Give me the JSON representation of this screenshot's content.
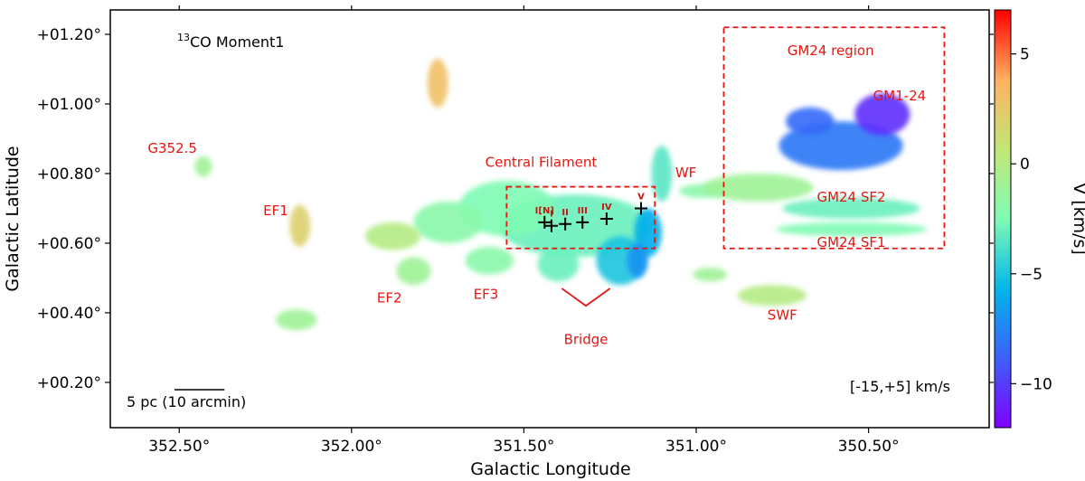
{
  "chart_data": {
    "type": "heatmap",
    "title": "13CO Moment1",
    "title_parts": {
      "sup": "13",
      "main": "CO Moment1"
    },
    "xlabel": "Galactic Longitude",
    "ylabel": "Galactic Latitude",
    "xlim": [
      352.7,
      350.15
    ],
    "ylim": [
      0.07,
      1.27
    ],
    "x_ticks": [
      {
        "value": 352.5,
        "label": "352.50°"
      },
      {
        "value": 352.0,
        "label": "352.00°"
      },
      {
        "value": 351.5,
        "label": "351.50°"
      },
      {
        "value": 351.0,
        "label": "351.00°"
      },
      {
        "value": 350.5,
        "label": "350.50°"
      }
    ],
    "y_ticks": [
      {
        "value": 1.2,
        "label": "+01.20°"
      },
      {
        "value": 1.0,
        "label": "+01.00°"
      },
      {
        "value": 0.8,
        "label": "+00.80°"
      },
      {
        "value": 0.6,
        "label": "+00.60°"
      },
      {
        "value": 0.4,
        "label": "+00.40°"
      },
      {
        "value": 0.2,
        "label": "+00.20°"
      }
    ],
    "colorbar": {
      "label": "V [km/s]",
      "vmin": -12,
      "vmax": 7,
      "ticks": [
        {
          "value": 5,
          "label": "5"
        },
        {
          "value": 0,
          "label": "0"
        },
        {
          "value": -5,
          "label": "−5"
        },
        {
          "value": -10,
          "label": "−10"
        }
      ],
      "colormap": "rainbow"
    },
    "velocity_range_label": "[-15,+5] km/s",
    "scale_bar_label": "5 pc (10 arcmin)",
    "scale_bar_length_deg": 0.145,
    "regions": [
      {
        "name": "Central Filament box",
        "l": [
          351.55,
          351.12
        ],
        "b": [
          0.585,
          0.762
        ]
      },
      {
        "name": "GM24 region box",
        "l": [
          350.92,
          350.28
        ],
        "b": [
          0.585,
          1.22
        ]
      }
    ],
    "labels": [
      {
        "text": "G352.5",
        "l": 352.52,
        "b": 0.86
      },
      {
        "text": "EF1",
        "l": 352.22,
        "b": 0.68
      },
      {
        "text": "EF2",
        "l": 351.89,
        "b": 0.43
      },
      {
        "text": "EF3",
        "l": 351.61,
        "b": 0.44
      },
      {
        "text": "Central Filament",
        "l": 351.45,
        "b": 0.82
      },
      {
        "text": "WF",
        "l": 351.03,
        "b": 0.79
      },
      {
        "text": "Bridge",
        "l": 351.32,
        "b": 0.31
      },
      {
        "text": "SWF",
        "l": 350.75,
        "b": 0.38
      },
      {
        "text": "GM24 region",
        "l": 350.61,
        "b": 1.14
      },
      {
        "text": "GM1-24",
        "l": 350.41,
        "b": 1.01
      },
      {
        "text": "GM24 SF2",
        "l": 350.55,
        "b": 0.72
      },
      {
        "text": "GM24 SF1",
        "l": 350.55,
        "b": 0.59
      }
    ],
    "clumps": [
      {
        "label": "I[N]",
        "l": 351.44,
        "b": 0.66
      },
      {
        "label": "I",
        "l": 351.42,
        "b": 0.65
      },
      {
        "label": "II",
        "l": 351.38,
        "b": 0.655
      },
      {
        "label": "III",
        "l": 351.33,
        "b": 0.66
      },
      {
        "label": "IV",
        "l": 351.26,
        "b": 0.67
      },
      {
        "label": "V",
        "l": 351.16,
        "b": 0.7
      }
    ],
    "clouds": [
      {
        "l": 351.35,
        "b": 0.65,
        "rl": 0.22,
        "rb": 0.09,
        "v": -3
      },
      {
        "l": 351.55,
        "b": 0.7,
        "rl": 0.14,
        "rb": 0.08,
        "v": -2.5
      },
      {
        "l": 351.72,
        "b": 0.66,
        "rl": 0.1,
        "rb": 0.06,
        "v": -2
      },
      {
        "l": 351.88,
        "b": 0.62,
        "rl": 0.08,
        "rb": 0.04,
        "v": 0
      },
      {
        "l": 351.82,
        "b": 0.52,
        "rl": 0.05,
        "rb": 0.04,
        "v": -1
      },
      {
        "l": 351.6,
        "b": 0.55,
        "rl": 0.07,
        "rb": 0.04,
        "v": -2
      },
      {
        "l": 351.4,
        "b": 0.54,
        "rl": 0.06,
        "rb": 0.05,
        "v": -3
      },
      {
        "l": 351.22,
        "b": 0.55,
        "rl": 0.07,
        "rb": 0.07,
        "v": -5
      },
      {
        "l": 351.14,
        "b": 0.63,
        "rl": 0.04,
        "rb": 0.07,
        "v": -6
      },
      {
        "l": 351.1,
        "b": 0.8,
        "rl": 0.03,
        "rb": 0.08,
        "v": -3.5
      },
      {
        "l": 350.98,
        "b": 0.75,
        "rl": 0.07,
        "rb": 0.02,
        "v": -2
      },
      {
        "l": 350.82,
        "b": 0.76,
        "rl": 0.16,
        "rb": 0.04,
        "v": -1
      },
      {
        "l": 350.58,
        "b": 0.88,
        "rl": 0.18,
        "rb": 0.07,
        "v": -8
      },
      {
        "l": 350.46,
        "b": 0.97,
        "rl": 0.08,
        "rb": 0.06,
        "v": -10.5
      },
      {
        "l": 350.67,
        "b": 0.95,
        "rl": 0.07,
        "rb": 0.04,
        "v": -8.5
      },
      {
        "l": 350.55,
        "b": 0.7,
        "rl": 0.2,
        "rb": 0.03,
        "v": -3
      },
      {
        "l": 350.55,
        "b": 0.64,
        "rl": 0.22,
        "rb": 0.02,
        "v": -2.5
      },
      {
        "l": 350.78,
        "b": 0.45,
        "rl": 0.1,
        "rb": 0.03,
        "v": 0
      },
      {
        "l": 350.96,
        "b": 0.51,
        "rl": 0.05,
        "rb": 0.02,
        "v": -1
      },
      {
        "l": 352.15,
        "b": 0.65,
        "rl": 0.03,
        "rb": 0.06,
        "v": 2
      },
      {
        "l": 352.43,
        "b": 0.82,
        "rl": 0.025,
        "rb": 0.03,
        "v": -1
      },
      {
        "l": 352.16,
        "b": 0.38,
        "rl": 0.06,
        "rb": 0.03,
        "v": -1
      },
      {
        "l": 351.75,
        "b": 1.06,
        "rl": 0.03,
        "rb": 0.07,
        "v": 3
      },
      {
        "l": 351.17,
        "b": 0.55,
        "rl": 0.03,
        "rb": 0.05,
        "v": -7
      }
    ]
  },
  "plot": {
    "frame_color": "#000000",
    "annotation_color": "#e8150f",
    "marker_color": "#000000"
  }
}
